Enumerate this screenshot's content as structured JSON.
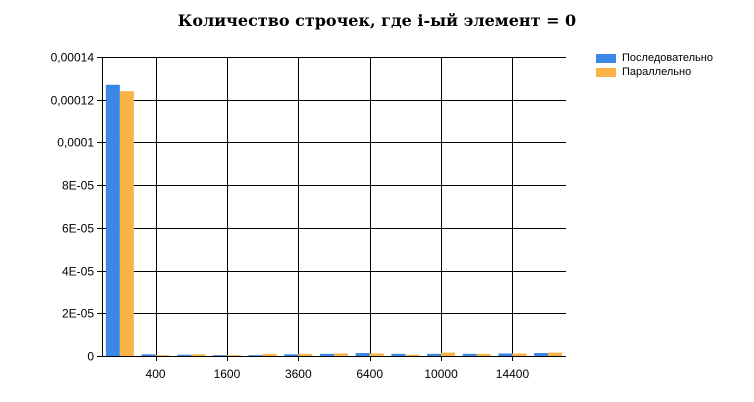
{
  "chart_data": {
    "type": "bar",
    "title": "Количество строчек, где i-ый элемент = 0",
    "xlabel": "",
    "ylabel": "",
    "ylim": [
      0,
      0.00014
    ],
    "yticks": [
      {
        "value": 0,
        "label": "0"
      },
      {
        "value": 2e-05,
        "label": "2E-05"
      },
      {
        "value": 4e-05,
        "label": "4E-05"
      },
      {
        "value": 6e-05,
        "label": "6E-05"
      },
      {
        "value": 8e-05,
        "label": "8E-05"
      },
      {
        "value": 0.0001,
        "label": "0,0001"
      },
      {
        "value": 0.00012,
        "label": "0,00012"
      },
      {
        "value": 0.00014,
        "label": "0,00014"
      }
    ],
    "categories": [
      "",
      "400",
      "",
      "1600",
      "",
      "3600",
      "",
      "6400",
      "",
      "10000",
      "",
      "14400",
      ""
    ],
    "series": [
      {
        "name": "Последовательно",
        "color": "#3a87e6",
        "values": [
          0.000127,
          8e-07,
          6e-07,
          4e-07,
          4e-07,
          8e-07,
          1e-06,
          1.4e-06,
          1e-06,
          1e-06,
          1e-06,
          1.2e-06,
          1.4e-06
        ]
      },
      {
        "name": "Параллельно",
        "color": "#f9b346",
        "values": [
          0.000124,
          4e-07,
          8e-07,
          4e-07,
          1e-06,
          1e-06,
          1.2e-06,
          1.2e-06,
          6e-07,
          1.6e-06,
          1e-06,
          1.2e-06,
          1.6e-06
        ]
      }
    ],
    "grid": true,
    "legend": "top-right"
  }
}
